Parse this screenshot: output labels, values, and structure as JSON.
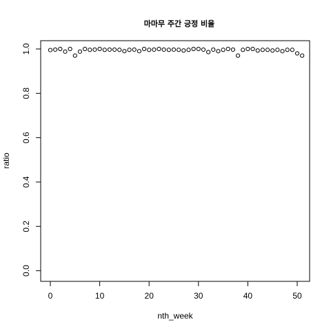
{
  "chart_data": {
    "type": "scatter",
    "title": "마마무 주간 긍정 비율",
    "xlabel": "nth_week",
    "ylabel": "ratio",
    "xlim": [
      -1,
      52
    ],
    "ylim": [
      -0.02,
      1.02
    ],
    "x_ticks": [
      0,
      10,
      20,
      30,
      40,
      50
    ],
    "y_ticks": [
      0.0,
      0.2,
      0.4,
      0.6,
      0.8,
      1.0
    ],
    "x_tick_labels": [
      "0",
      "10",
      "20",
      "30",
      "40",
      "50"
    ],
    "y_tick_labels": [
      "0.0",
      "0.2",
      "0.4",
      "0.6",
      "0.8",
      "1.0"
    ],
    "grid": false,
    "marker": "open-circle",
    "x": [
      0,
      1,
      2,
      3,
      4,
      5,
      6,
      7,
      8,
      9,
      10,
      11,
      12,
      13,
      14,
      15,
      16,
      17,
      18,
      19,
      20,
      21,
      22,
      23,
      24,
      25,
      26,
      27,
      28,
      29,
      30,
      31,
      32,
      33,
      34,
      35,
      36,
      37,
      38,
      39,
      40,
      41,
      42,
      43,
      44,
      45,
      46,
      47,
      48,
      49,
      50,
      51
    ],
    "y": [
      0.995,
      0.997,
      1.0,
      0.988,
      1.0,
      0.97,
      0.988,
      1.0,
      0.996,
      0.997,
      1.0,
      0.996,
      0.997,
      0.997,
      0.996,
      0.99,
      0.996,
      0.997,
      0.99,
      1.0,
      0.996,
      0.997,
      1.0,
      0.997,
      0.996,
      0.997,
      0.996,
      0.993,
      0.996,
      1.0,
      1.0,
      0.997,
      0.986,
      0.997,
      0.99,
      0.996,
      1.0,
      0.997,
      0.97,
      0.996,
      1.0,
      1.0,
      0.993,
      0.996,
      0.996,
      0.993,
      0.996,
      0.99,
      0.996,
      0.996,
      0.98,
      0.97
    ]
  }
}
